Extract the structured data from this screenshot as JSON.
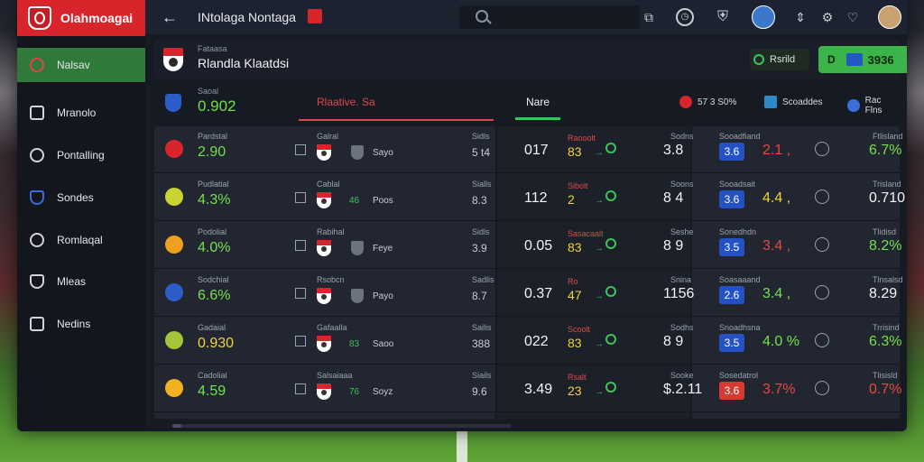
{
  "app": {
    "brand": "Olahmoagai",
    "page_title": "INtolaga Nontaga"
  },
  "search": {
    "placeholder": ""
  },
  "sidebar": {
    "items": [
      {
        "label": "Nalsav",
        "active": true
      },
      {
        "label": "Mranolo"
      },
      {
        "label": "Pontalling"
      },
      {
        "label": "Sondes"
      },
      {
        "label": "Romlaqal"
      },
      {
        "label": "Mleas"
      },
      {
        "label": "Nedins"
      }
    ]
  },
  "match": {
    "subtitle": "Fataasa",
    "name": "Rlandla Klaatdsi",
    "status_label": "Rsrild",
    "score": "3936"
  },
  "summary": {
    "label": "Saoal",
    "value": "0.902",
    "tabs": [
      {
        "label": "Rlaative. Sa"
      },
      {
        "label": "Nare"
      }
    ],
    "chips": [
      {
        "label": "57 3 S0%"
      },
      {
        "label": "Scoaddes"
      },
      {
        "label": "Rac Flns"
      }
    ],
    "colors": {
      "accent_red": "#e0484a",
      "accent_green": "#3cc35a",
      "brand": "#d8242b"
    }
  },
  "rows": [
    {
      "stat_label": "Pardstal",
      "stat": "2.90",
      "stat_color": "green",
      "mid_label": "Galral",
      "team_a": "Sayo",
      "right_label": "Sidls",
      "right_value": "5 t4",
      "score": "017",
      "score_label": "Raooolt",
      "score_sub": "83",
      "score_side_label": "Sodns",
      "score_side": "3.8",
      "tag": "3.6",
      "tag_color": "blue",
      "odds_label": "Sooadfiand",
      "odds": "2.1 ,",
      "odds_color": "red",
      "final_label": "Ftlisland",
      "final": "6.7%",
      "final_color": "green"
    },
    {
      "stat_label": "Pudlatial",
      "stat": "4.3%",
      "stat_color": "green",
      "mid_label": "Cablal",
      "team_a": "Poos",
      "team_score": "46",
      "right_label": "Sialls",
      "right_value": "8.3",
      "score": "112",
      "score_label": "Sibolt",
      "score_sub": "2",
      "score_side_label": "Soons",
      "score_side": "8 4",
      "tag": "3.6",
      "tag_color": "blue",
      "odds_label": "Sooadsait",
      "odds": "4.4 ,",
      "odds_color": "yellow",
      "final_label": "Trisland",
      "final": "0.710",
      "final_color": "white"
    },
    {
      "stat_label": "Podolial",
      "stat": "4.0%",
      "stat_color": "green",
      "mid_label": "Rabihal",
      "team_a": "Feye",
      "right_label": "Sidls",
      "right_value": "3.9",
      "score": "0.05",
      "score_label": "Sasacaalt",
      "score_sub": "83",
      "score_side_label": "Seshe",
      "score_side": "8 9",
      "tag": "3.5",
      "tag_color": "blue",
      "odds_label": "Sonedhdn",
      "odds": "3.4 ,",
      "odds_color": "red",
      "final_label": "Tlidisd",
      "final": "8.2%",
      "final_color": "green"
    },
    {
      "stat_label": "Sodchial",
      "stat": "6.6%",
      "stat_color": "green",
      "mid_label": "Rsobcn",
      "team_a": "Payo",
      "right_label": "Sadlis",
      "right_value": "8.7",
      "score": "0.37",
      "score_label": "Ro",
      "score_sub": "47",
      "score_side_label": "Snina",
      "score_side": "1156",
      "tag": "2.6",
      "tag_color": "blue",
      "odds_label": "Soasaaand",
      "odds": "3.4 ,",
      "odds_color": "green",
      "final_label": "Tlnsalsd",
      "final": "8.29",
      "final_color": "white"
    },
    {
      "stat_label": "Gadaial",
      "stat": "0.930",
      "stat_color": "yellow",
      "mid_label": "Gafaalla",
      "team_a": "Saoo",
      "team_score": "83",
      "right_label": "Sailis",
      "right_value": "388",
      "score": "022",
      "score_label": "Scoolt",
      "score_sub": "83",
      "score_side_label": "Sodhs",
      "score_side": "8 9",
      "tag": "3.5",
      "tag_color": "blue",
      "odds_label": "Snoadhsna",
      "odds": "4.0 %",
      "odds_color": "green",
      "final_label": "Trrisind",
      "final": "6.3%",
      "final_color": "green"
    },
    {
      "stat_label": "Cadolial",
      "stat": "4.59",
      "stat_color": "green",
      "mid_label": "Salsaiaaa",
      "team_a": "Soyz",
      "team_score": "76",
      "right_label": "Siails",
      "right_value": "9.6",
      "score": "3.49",
      "score_label": "Rsalt",
      "score_sub": "23",
      "score_side_label": "Sooke",
      "score_side": "$.2.11",
      "tag": "3.6",
      "tag_color": "red",
      "odds_label": "Sosedatrol",
      "odds": "3.7%",
      "odds_color": "red",
      "final_label": "Tlisisld",
      "final": "0.7%",
      "final_color": "red"
    }
  ]
}
